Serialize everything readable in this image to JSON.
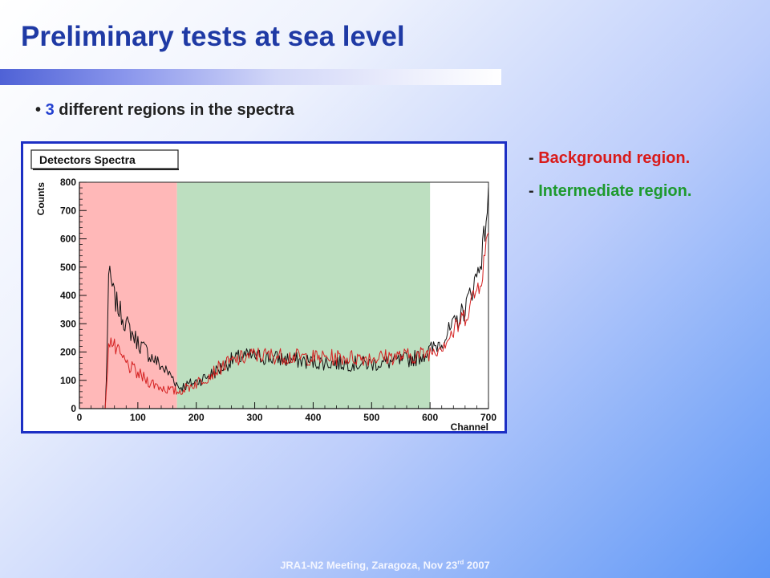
{
  "slide": {
    "title": "Preliminary tests at sea level",
    "bullet_prefix": "• ",
    "bullet_number": "3",
    "bullet_text": " different regions in the spectra",
    "legend": [
      {
        "prefix": "- ",
        "label": "Background region.",
        "color": "#d91a1a"
      },
      {
        "prefix": "- ",
        "label": "Intermediate region.",
        "color": "#1e9a2e"
      }
    ],
    "footer_main": "JRA1-N2 Meeting, Zaragoza, Nov 23",
    "footer_sup": "rd",
    "footer_year": " 2007"
  },
  "chart_data": {
    "type": "line",
    "title": "Detectors Spectra",
    "xlabel": "Channel",
    "ylabel": "Counts",
    "xlim": [
      0,
      700
    ],
    "ylim": [
      0,
      800
    ],
    "xticks": [
      0,
      100,
      200,
      300,
      400,
      500,
      600,
      700
    ],
    "yticks": [
      0,
      100,
      200,
      300,
      400,
      500,
      600,
      700,
      800
    ],
    "regions": [
      {
        "label": "Background region",
        "x_range": [
          0,
          167
        ],
        "color": "#ffb8b8"
      },
      {
        "label": "Intermediate region",
        "x_range": [
          167,
          600
        ],
        "color": "#bddfc0"
      }
    ],
    "series": [
      {
        "color": "#111111",
        "x": [
          0,
          45,
          50,
          55,
          60,
          70,
          80,
          90,
          100,
          120,
          140,
          160,
          170,
          180,
          200,
          220,
          240,
          260,
          280,
          300,
          350,
          400,
          450,
          500,
          550,
          580,
          600,
          620,
          640,
          660,
          680,
          690,
          700
        ],
        "y": [
          0,
          0,
          470,
          440,
          390,
          340,
          300,
          265,
          235,
          190,
          150,
          110,
          75,
          80,
          95,
          115,
          140,
          170,
          185,
          185,
          175,
          165,
          160,
          158,
          168,
          182,
          205,
          240,
          290,
          355,
          470,
          560,
          750
        ]
      },
      {
        "color": "#d42020",
        "x": [
          0,
          45,
          50,
          55,
          60,
          70,
          80,
          90,
          100,
          120,
          140,
          160,
          170,
          180,
          200,
          220,
          240,
          260,
          280,
          300,
          350,
          400,
          450,
          500,
          550,
          580,
          600,
          620,
          640,
          660,
          680,
          690,
          700
        ],
        "y": [
          0,
          0,
          250,
          235,
          215,
          185,
          160,
          140,
          122,
          95,
          75,
          62,
          60,
          70,
          90,
          115,
          145,
          165,
          180,
          190,
          185,
          180,
          180,
          180,
          185,
          188,
          200,
          225,
          270,
          330,
          420,
          490,
          620
        ]
      }
    ]
  }
}
